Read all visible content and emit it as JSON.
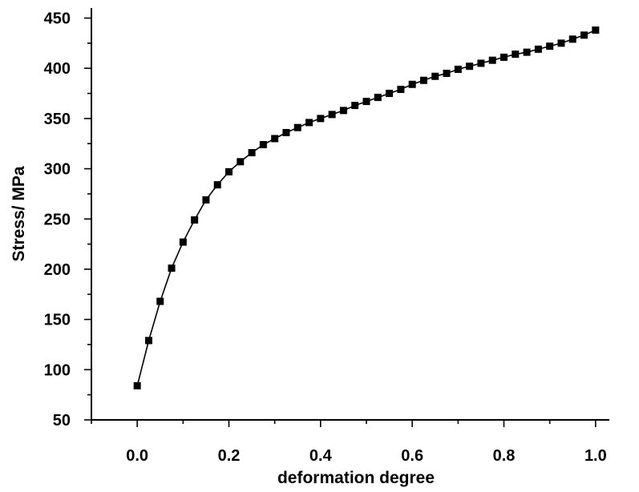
{
  "chart_data": {
    "type": "line",
    "title": "",
    "xlabel": "deformation degree",
    "ylabel": "Stress/ MPa",
    "xlim": [
      -0.1,
      1.03
    ],
    "ylim": [
      50,
      460
    ],
    "x_ticks": [
      0.0,
      0.2,
      0.4,
      0.6,
      0.8,
      1.0
    ],
    "x_tick_labels": [
      "0.0",
      "0.2",
      "0.4",
      "0.6",
      "0.8",
      "1.0"
    ],
    "x_minor_step": 0.1,
    "y_ticks": [
      50,
      100,
      150,
      200,
      250,
      300,
      350,
      400,
      450
    ],
    "y_tick_labels": [
      "50",
      "100",
      "150",
      "200",
      "250",
      "300",
      "350",
      "400",
      "450"
    ],
    "y_minor_step": 25,
    "grid": false,
    "legend": "none",
    "series": [
      {
        "marker": "square",
        "color": "#000000",
        "x": [
          0.0,
          0.025,
          0.05,
          0.075,
          0.1,
          0.125,
          0.15,
          0.175,
          0.2,
          0.225,
          0.25,
          0.275,
          0.3,
          0.325,
          0.35,
          0.375,
          0.4,
          0.425,
          0.45,
          0.475,
          0.5,
          0.525,
          0.55,
          0.575,
          0.6,
          0.625,
          0.65,
          0.675,
          0.7,
          0.725,
          0.75,
          0.775,
          0.8,
          0.825,
          0.85,
          0.875,
          0.9,
          0.925,
          0.95,
          0.975,
          1.0
        ],
        "y": [
          84,
          129,
          168,
          201,
          227,
          249,
          269,
          284,
          297,
          307,
          316,
          324,
          330,
          336,
          341,
          346,
          350,
          354,
          358,
          363,
          367,
          371,
          375,
          379,
          384,
          388,
          392,
          395,
          399,
          402,
          405,
          408,
          411,
          414,
          416,
          419,
          422,
          425,
          429,
          433,
          438
        ]
      }
    ]
  }
}
